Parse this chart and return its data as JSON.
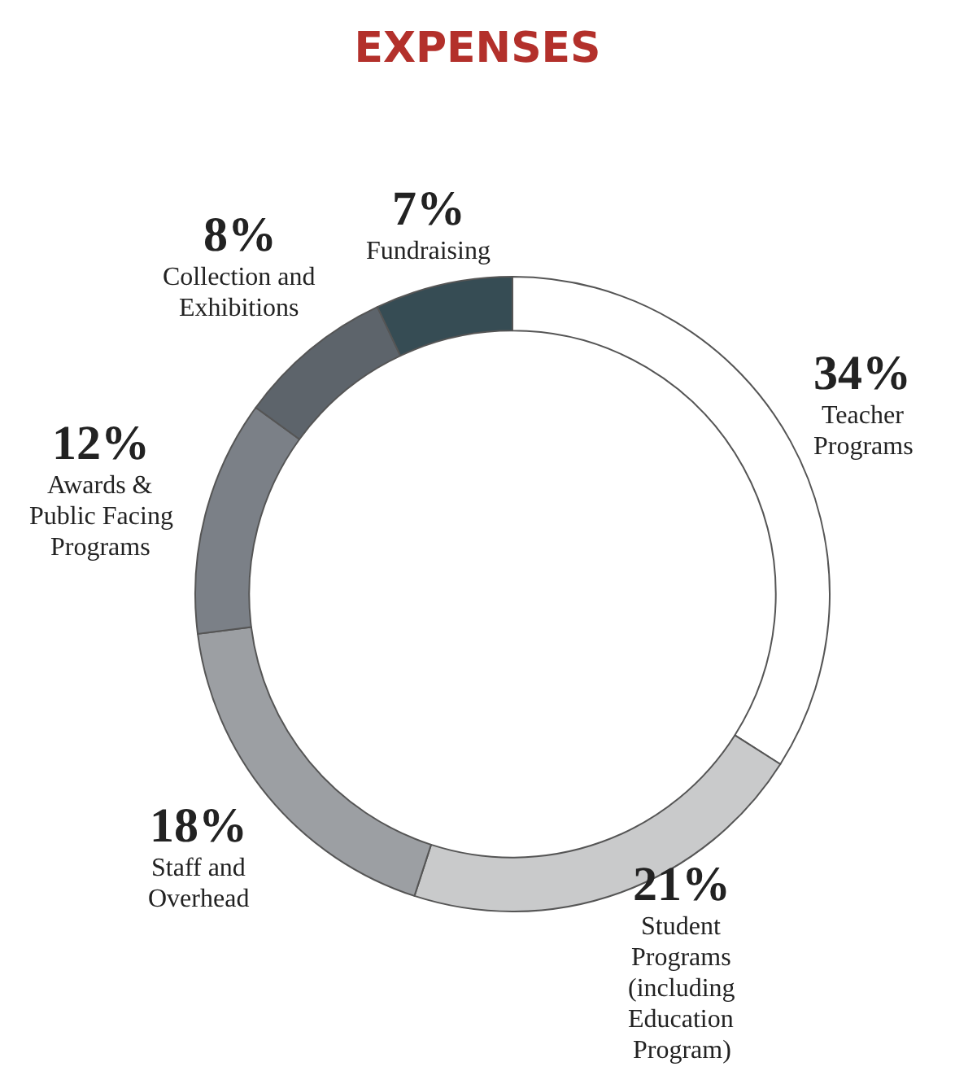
{
  "chart_data": {
    "type": "donut",
    "title": "EXPENSES",
    "categories": [
      "Teacher Programs",
      "Student Programs (including Education Program)",
      "Staff and Overhead",
      "Awards & Public Facing Programs",
      "Collection and Exhibitions",
      "Fundraising"
    ],
    "values": [
      34,
      21,
      18,
      12,
      8,
      7
    ],
    "value_labels": [
      "34%",
      "21%",
      "18%",
      "12%",
      "8%",
      "7%"
    ],
    "colors": [
      "#ffffff",
      "#c9cacb",
      "#9c9fa3",
      "#7b8087",
      "#5d646b",
      "#364c54"
    ],
    "legend": false
  }
}
